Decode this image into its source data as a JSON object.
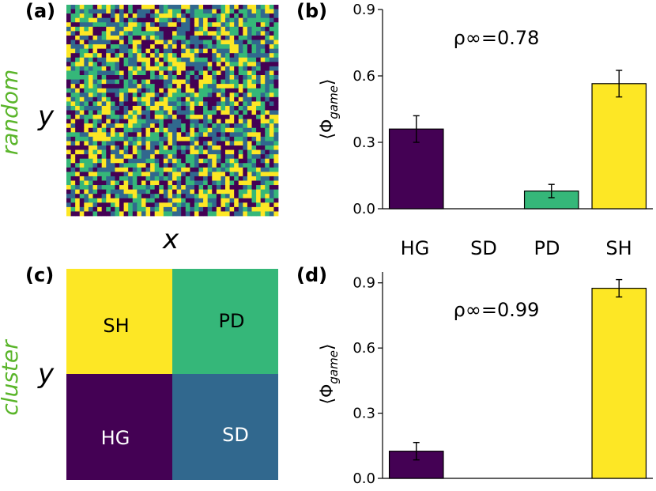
{
  "figure": {
    "panel_a": {
      "label": "(a)",
      "side_label": "random",
      "ylabel": "y",
      "xlabel": "x"
    },
    "panel_b": {
      "label": "(b)"
    },
    "panel_c": {
      "label": "(c)",
      "side_label": "cluster",
      "ylabel": "y"
    },
    "panel_d": {
      "label": "(d)"
    },
    "categories_row": [
      "HG",
      "SD",
      "PD",
      "SH"
    ]
  },
  "colors": {
    "HG": "#440154",
    "SD": "#31688e",
    "PD": "#35b779",
    "SH": "#fde725",
    "side_label": "#5ab52a"
  },
  "random_grid": {
    "rows": 48,
    "cols": 48,
    "states": [
      "HG",
      "SD",
      "PD",
      "SH"
    ]
  },
  "cluster_map": {
    "quadrants": [
      {
        "name": "SH",
        "label": "SH"
      },
      {
        "name": "PD",
        "label": "PD"
      },
      {
        "name": "HG",
        "label": "HG"
      },
      {
        "name": "SD",
        "label": "SD"
      }
    ]
  },
  "chart_data": [
    {
      "panel": "b",
      "type": "bar",
      "categories": [
        "HG",
        "SD",
        "PD",
        "SH"
      ],
      "values": [
        0.36,
        0.0,
        0.08,
        0.565
      ],
      "errors": [
        0.06,
        0.0,
        0.03,
        0.06
      ],
      "ylabel": "⟨Φ",
      "ylabel_sub": "game",
      "ylabel_close": "⟩",
      "ylim": [
        0,
        0.9
      ],
      "yticks": [
        "0.0",
        "0.3",
        "0.6",
        "0.9"
      ],
      "annotation": "ρ∞=0.78"
    },
    {
      "panel": "d",
      "type": "bar",
      "categories": [
        "HG",
        "SD",
        "PD",
        "SH"
      ],
      "values": [
        0.125,
        0.0,
        0.0,
        0.875
      ],
      "errors": [
        0.04,
        0.0,
        0.0,
        0.04
      ],
      "ylabel": "⟨Φ",
      "ylabel_sub": "game",
      "ylabel_close": "⟩",
      "ylim": [
        0,
        0.95
      ],
      "yticks": [
        "0.0",
        "0.3",
        "0.6",
        "0.9"
      ],
      "annotation": "ρ∞=0.99"
    }
  ]
}
